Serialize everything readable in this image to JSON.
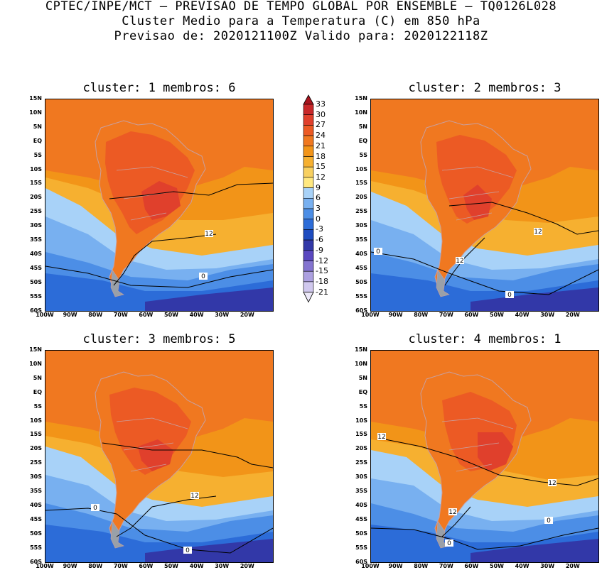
{
  "header": {
    "line1": "CPTEC/INPE/MCT – PREVISAO DE TEMPO GLOBAL POR ENSEMBLE – TQ0126L028",
    "line2": "Cluster Medio para a Temperatura (C) em 850 hPa",
    "line3": "Previsao de: 2020121100Z   Valido para: 2020122118Z"
  },
  "panels": [
    {
      "title": "cluster: 1   membros: 6",
      "contour_labels": [
        "12",
        "0"
      ]
    },
    {
      "title": "cluster: 2   membros: 3",
      "contour_labels": [
        "0",
        "12",
        "12",
        "0"
      ]
    },
    {
      "title": "cluster: 3   membros: 5",
      "contour_labels": [
        "0",
        "12",
        "0"
      ]
    },
    {
      "title": "cluster: 4   membros: 1",
      "contour_labels": [
        "12",
        "12",
        "12",
        "0",
        "0"
      ]
    }
  ],
  "axes": {
    "lat_labels": [
      "15N",
      "10N",
      "5N",
      "EQ",
      "5S",
      "10S",
      "15S",
      "20S",
      "25S",
      "30S",
      "35S",
      "40S",
      "45S",
      "50S",
      "55S",
      "60S"
    ],
    "lon_labels": [
      "100W",
      "90W",
      "80W",
      "70W",
      "60W",
      "50W",
      "40W",
      "30W",
      "20W"
    ]
  },
  "colorbar": {
    "levels": [
      "33",
      "30",
      "27",
      "24",
      "21",
      "18",
      "15",
      "12",
      "9",
      "6",
      "3",
      "0",
      "-3",
      "-6",
      "-9",
      "-12",
      "-15",
      "-18",
      "-21"
    ],
    "colors": [
      "#a8141e",
      "#c8282a",
      "#e0402c",
      "#ec5a24",
      "#f07820",
      "#f29418",
      "#f6b030",
      "#f8d060",
      "#ffe880",
      "#a8d2f8",
      "#78b0f0",
      "#4c8ee6",
      "#2c6cd8",
      "#1e4cc0",
      "#3238a8",
      "#5a48c0",
      "#8474d0",
      "#aca0e0",
      "#d0c8ee",
      "#ece8f8"
    ]
  },
  "map_colors": {
    "t21": "#e0402c",
    "t18": "#ec5a24",
    "t15": "#f07820",
    "t12": "#f29418",
    "t9": "#f6b030",
    "t6": "#ffe880",
    "t3": "#a8d2f8",
    "t0": "#78b0f0",
    "tm3": "#4c8ee6",
    "tm6": "#2c6cd8",
    "tm9": "#1e4cc0",
    "tm12": "#3238a8",
    "land": "#c8a0a0"
  }
}
